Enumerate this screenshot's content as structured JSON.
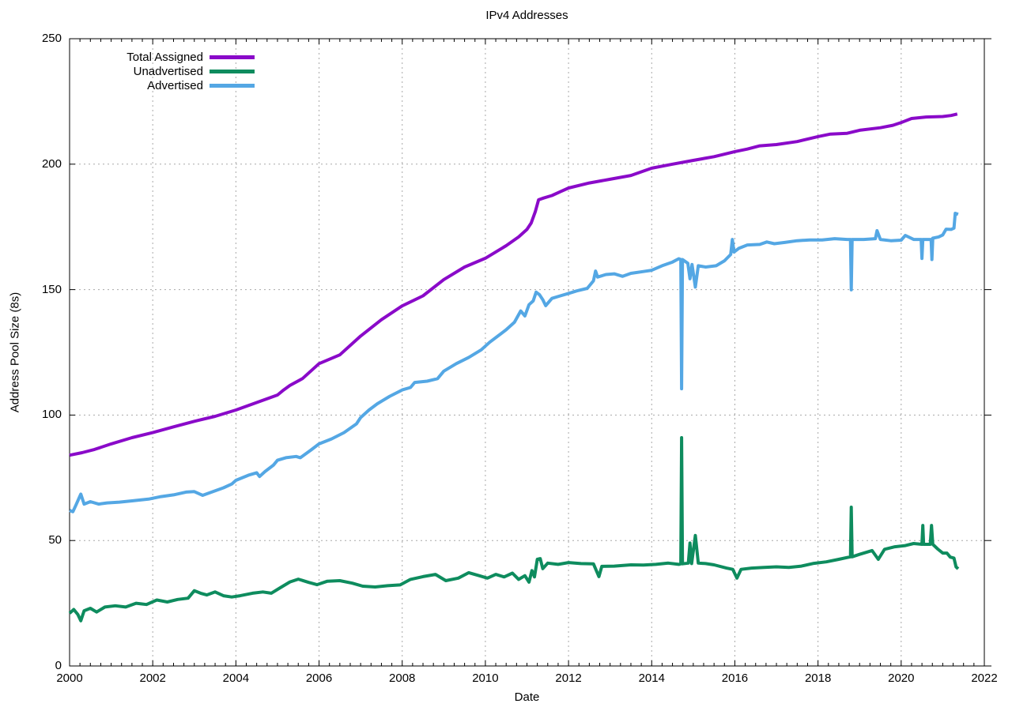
{
  "chart": {
    "title": "IPv4 Addresses",
    "xlabel": "Date",
    "ylabel": "Address Pool Size (8s)"
  },
  "chart_data": {
    "type": "line",
    "title": "IPv4 Addresses",
    "xlabel": "Date",
    "ylabel": "Address Pool Size (8s)",
    "xlim": [
      2000,
      2022
    ],
    "ylim": [
      0,
      250
    ],
    "x_ticks": [
      2000,
      2002,
      2004,
      2006,
      2008,
      2010,
      2012,
      2014,
      2016,
      2018,
      2020,
      2022
    ],
    "y_ticks": [
      0,
      50,
      100,
      150,
      200,
      250
    ],
    "x_minor_step": 0.25,
    "grid": true,
    "grid_color": "#a8a8a8",
    "axis_color": "#000000",
    "legend_position": "top-left-inside",
    "series": [
      {
        "name": "Total Assigned",
        "color": "#8a0ac9",
        "points": [
          [
            2000.0,
            84
          ],
          [
            2000.3,
            85
          ],
          [
            2000.6,
            86.3
          ],
          [
            2001.0,
            88.5
          ],
          [
            2001.5,
            91
          ],
          [
            2002.0,
            93
          ],
          [
            2002.5,
            95.3
          ],
          [
            2003.0,
            97.5
          ],
          [
            2003.5,
            99.5
          ],
          [
            2004.0,
            102
          ],
          [
            2004.5,
            105
          ],
          [
            2005.0,
            108
          ],
          [
            2005.15,
            110
          ],
          [
            2005.3,
            111.8
          ],
          [
            2005.6,
            114.5
          ],
          [
            2006.0,
            120.5
          ],
          [
            2006.5,
            124
          ],
          [
            2007.0,
            131.5
          ],
          [
            2007.5,
            138
          ],
          [
            2008.0,
            143.5
          ],
          [
            2008.5,
            147.5
          ],
          [
            2009.0,
            154
          ],
          [
            2009.5,
            159
          ],
          [
            2010.0,
            162.5
          ],
          [
            2010.5,
            167.5
          ],
          [
            2010.8,
            171
          ],
          [
            2011.0,
            174
          ],
          [
            2011.1,
            176.5
          ],
          [
            2011.2,
            181
          ],
          [
            2011.28,
            185.8
          ],
          [
            2011.4,
            186.5
          ],
          [
            2011.6,
            187.5
          ],
          [
            2011.8,
            189
          ],
          [
            2012.0,
            190.5
          ],
          [
            2012.5,
            192.5
          ],
          [
            2013.0,
            194
          ],
          [
            2013.5,
            195.5
          ],
          [
            2014.0,
            198.4
          ],
          [
            2014.5,
            200
          ],
          [
            2015.0,
            201.5
          ],
          [
            2015.5,
            203
          ],
          [
            2016.0,
            205
          ],
          [
            2016.3,
            206
          ],
          [
            2016.6,
            207.3
          ],
          [
            2017.0,
            207.8
          ],
          [
            2017.5,
            209
          ],
          [
            2018.0,
            211
          ],
          [
            2018.3,
            212
          ],
          [
            2018.7,
            212.3
          ],
          [
            2019.0,
            213.5
          ],
          [
            2019.5,
            214.5
          ],
          [
            2019.8,
            215.5
          ],
          [
            2020.0,
            216.6
          ],
          [
            2020.25,
            218.2
          ],
          [
            2020.6,
            218.8
          ],
          [
            2021.0,
            219
          ],
          [
            2021.2,
            219.4
          ],
          [
            2021.35,
            220
          ]
        ]
      },
      {
        "name": "Unadvertised",
        "color": "#0e8c5e",
        "points": [
          [
            2000.0,
            21
          ],
          [
            2000.1,
            22.5
          ],
          [
            2000.2,
            20.5
          ],
          [
            2000.27,
            18
          ],
          [
            2000.35,
            22
          ],
          [
            2000.5,
            23
          ],
          [
            2000.65,
            21.5
          ],
          [
            2000.85,
            23.5
          ],
          [
            2001.1,
            24
          ],
          [
            2001.35,
            23.5
          ],
          [
            2001.6,
            25
          ],
          [
            2001.85,
            24.5
          ],
          [
            2002.1,
            26.3
          ],
          [
            2002.35,
            25.5
          ],
          [
            2002.6,
            26.5
          ],
          [
            2002.85,
            27
          ],
          [
            2003.0,
            30
          ],
          [
            2003.15,
            29
          ],
          [
            2003.3,
            28.3
          ],
          [
            2003.5,
            29.5
          ],
          [
            2003.7,
            28
          ],
          [
            2003.9,
            27.5
          ],
          [
            2004.1,
            28
          ],
          [
            2004.4,
            29
          ],
          [
            2004.65,
            29.5
          ],
          [
            2004.85,
            29
          ],
          [
            2005.05,
            31
          ],
          [
            2005.3,
            33.5
          ],
          [
            2005.5,
            34.6
          ],
          [
            2005.75,
            33.3
          ],
          [
            2005.95,
            32.4
          ],
          [
            2006.2,
            33.8
          ],
          [
            2006.5,
            34
          ],
          [
            2006.8,
            33
          ],
          [
            2007.05,
            31.8
          ],
          [
            2007.35,
            31.5
          ],
          [
            2007.65,
            32
          ],
          [
            2007.95,
            32.3
          ],
          [
            2008.2,
            34.5
          ],
          [
            2008.5,
            35.6
          ],
          [
            2008.8,
            36.5
          ],
          [
            2009.05,
            34
          ],
          [
            2009.35,
            35
          ],
          [
            2009.6,
            37.2
          ],
          [
            2009.85,
            36
          ],
          [
            2010.05,
            35
          ],
          [
            2010.25,
            36.5
          ],
          [
            2010.45,
            35.5
          ],
          [
            2010.65,
            37
          ],
          [
            2010.8,
            34.5
          ],
          [
            2010.95,
            36
          ],
          [
            2011.05,
            33.4
          ],
          [
            2011.12,
            38
          ],
          [
            2011.18,
            35.5
          ],
          [
            2011.25,
            42.5
          ],
          [
            2011.32,
            42.8
          ],
          [
            2011.38,
            38.8
          ],
          [
            2011.5,
            41
          ],
          [
            2011.75,
            40.5
          ],
          [
            2012.0,
            41.2
          ],
          [
            2012.3,
            40.8
          ],
          [
            2012.6,
            40.7
          ],
          [
            2012.73,
            35.6
          ],
          [
            2012.8,
            39.7
          ],
          [
            2013.1,
            39.8
          ],
          [
            2013.5,
            40.3
          ],
          [
            2013.8,
            40.2
          ],
          [
            2014.1,
            40.5
          ],
          [
            2014.4,
            41
          ],
          [
            2014.65,
            40.5
          ],
          [
            2014.7,
            40.7
          ],
          [
            2014.72,
            91
          ],
          [
            2014.74,
            40.7
          ],
          [
            2014.88,
            41
          ],
          [
            2014.92,
            49
          ],
          [
            2014.96,
            40.8
          ],
          [
            2015.05,
            52
          ],
          [
            2015.12,
            41
          ],
          [
            2015.3,
            40.8
          ],
          [
            2015.5,
            40.3
          ],
          [
            2015.8,
            39
          ],
          [
            2015.95,
            38.5
          ],
          [
            2016.05,
            35
          ],
          [
            2016.15,
            38.5
          ],
          [
            2016.4,
            39
          ],
          [
            2016.7,
            39.3
          ],
          [
            2017.0,
            39.5
          ],
          [
            2017.3,
            39.3
          ],
          [
            2017.6,
            39.8
          ],
          [
            2017.9,
            40.9
          ],
          [
            2018.2,
            41.5
          ],
          [
            2018.5,
            42.5
          ],
          [
            2018.78,
            43.5
          ],
          [
            2018.8,
            63.3
          ],
          [
            2018.82,
            43.5
          ],
          [
            2019.0,
            44.5
          ],
          [
            2019.3,
            46
          ],
          [
            2019.45,
            42.5
          ],
          [
            2019.6,
            46.5
          ],
          [
            2019.85,
            47.5
          ],
          [
            2020.1,
            48
          ],
          [
            2020.3,
            48.8
          ],
          [
            2020.5,
            48.5
          ],
          [
            2020.52,
            56
          ],
          [
            2020.54,
            48.5
          ],
          [
            2020.7,
            48.5
          ],
          [
            2020.73,
            56
          ],
          [
            2020.76,
            48.5
          ],
          [
            2020.88,
            46.6
          ],
          [
            2021.0,
            45
          ],
          [
            2021.1,
            45
          ],
          [
            2021.18,
            43.4
          ],
          [
            2021.27,
            43
          ],
          [
            2021.32,
            39.5
          ],
          [
            2021.37,
            38.7
          ]
        ]
      },
      {
        "name": "Advertised",
        "color": "#54a7e4",
        "points": [
          [
            2000.0,
            62
          ],
          [
            2000.08,
            61.5
          ],
          [
            2000.15,
            64
          ],
          [
            2000.27,
            68.5
          ],
          [
            2000.35,
            64.5
          ],
          [
            2000.5,
            65.5
          ],
          [
            2000.7,
            64.5
          ],
          [
            2000.9,
            65
          ],
          [
            2001.2,
            65.3
          ],
          [
            2001.5,
            65.8
          ],
          [
            2001.9,
            66.5
          ],
          [
            2002.2,
            67.5
          ],
          [
            2002.5,
            68.2
          ],
          [
            2002.8,
            69.3
          ],
          [
            2003.0,
            69.5
          ],
          [
            2003.2,
            68
          ],
          [
            2003.45,
            69.5
          ],
          [
            2003.7,
            71
          ],
          [
            2003.9,
            72.5
          ],
          [
            2004.0,
            74
          ],
          [
            2004.3,
            76
          ],
          [
            2004.5,
            77
          ],
          [
            2004.57,
            75.5
          ],
          [
            2004.7,
            77.5
          ],
          [
            2004.9,
            80
          ],
          [
            2005.0,
            82
          ],
          [
            2005.2,
            83
          ],
          [
            2005.45,
            83.5
          ],
          [
            2005.55,
            83
          ],
          [
            2005.8,
            86
          ],
          [
            2006.0,
            88.5
          ],
          [
            2006.3,
            90.5
          ],
          [
            2006.6,
            93
          ],
          [
            2006.9,
            96.5
          ],
          [
            2007.0,
            99
          ],
          [
            2007.2,
            102
          ],
          [
            2007.4,
            104.5
          ],
          [
            2007.7,
            107.5
          ],
          [
            2008.0,
            110
          ],
          [
            2008.2,
            111
          ],
          [
            2008.3,
            113
          ],
          [
            2008.6,
            113.5
          ],
          [
            2008.85,
            114.5
          ],
          [
            2009.0,
            117.5
          ],
          [
            2009.3,
            120.5
          ],
          [
            2009.6,
            123
          ],
          [
            2009.9,
            126
          ],
          [
            2010.1,
            129
          ],
          [
            2010.3,
            131.5
          ],
          [
            2010.5,
            134
          ],
          [
            2010.7,
            137
          ],
          [
            2010.85,
            141.5
          ],
          [
            2010.95,
            139.5
          ],
          [
            2011.05,
            144
          ],
          [
            2011.15,
            145.5
          ],
          [
            2011.22,
            149
          ],
          [
            2011.3,
            148
          ],
          [
            2011.38,
            146
          ],
          [
            2011.45,
            143.6
          ],
          [
            2011.6,
            146.5
          ],
          [
            2011.8,
            147.5
          ],
          [
            2012.0,
            148.5
          ],
          [
            2012.2,
            149.5
          ],
          [
            2012.45,
            150.5
          ],
          [
            2012.6,
            153.5
          ],
          [
            2012.65,
            157.4
          ],
          [
            2012.7,
            155
          ],
          [
            2012.9,
            156
          ],
          [
            2013.1,
            156.3
          ],
          [
            2013.3,
            155.3
          ],
          [
            2013.5,
            156.5
          ],
          [
            2013.8,
            157.2
          ],
          [
            2014.0,
            157.7
          ],
          [
            2014.25,
            159.5
          ],
          [
            2014.5,
            161
          ],
          [
            2014.65,
            162.3
          ],
          [
            2014.7,
            162
          ],
          [
            2014.72,
            110.5
          ],
          [
            2014.74,
            162
          ],
          [
            2014.87,
            160.5
          ],
          [
            2014.92,
            154.3
          ],
          [
            2014.97,
            160
          ],
          [
            2015.05,
            151
          ],
          [
            2015.12,
            159.5
          ],
          [
            2015.3,
            159
          ],
          [
            2015.55,
            159.5
          ],
          [
            2015.75,
            161.5
          ],
          [
            2015.9,
            164
          ],
          [
            2015.94,
            170
          ],
          [
            2015.98,
            165
          ],
          [
            2016.1,
            166.5
          ],
          [
            2016.3,
            167.8
          ],
          [
            2016.6,
            168
          ],
          [
            2016.77,
            169
          ],
          [
            2016.95,
            168.3
          ],
          [
            2017.2,
            168.8
          ],
          [
            2017.5,
            169.5
          ],
          [
            2017.8,
            169.8
          ],
          [
            2018.1,
            169.8
          ],
          [
            2018.4,
            170.3
          ],
          [
            2018.7,
            170
          ],
          [
            2018.78,
            170
          ],
          [
            2018.8,
            149.9
          ],
          [
            2018.82,
            170
          ],
          [
            2019.1,
            170
          ],
          [
            2019.38,
            170.3
          ],
          [
            2019.42,
            173.5
          ],
          [
            2019.5,
            170
          ],
          [
            2019.75,
            169.5
          ],
          [
            2020.0,
            169.7
          ],
          [
            2020.1,
            171.6
          ],
          [
            2020.3,
            170
          ],
          [
            2020.48,
            170
          ],
          [
            2020.5,
            162.4
          ],
          [
            2020.52,
            170
          ],
          [
            2020.65,
            170
          ],
          [
            2020.72,
            170
          ],
          [
            2020.74,
            162
          ],
          [
            2020.76,
            170.5
          ],
          [
            2020.9,
            171
          ],
          [
            2021.0,
            171.8
          ],
          [
            2021.08,
            174.1
          ],
          [
            2021.2,
            174
          ],
          [
            2021.27,
            174.5
          ],
          [
            2021.3,
            180.4
          ],
          [
            2021.37,
            180
          ]
        ]
      }
    ]
  }
}
